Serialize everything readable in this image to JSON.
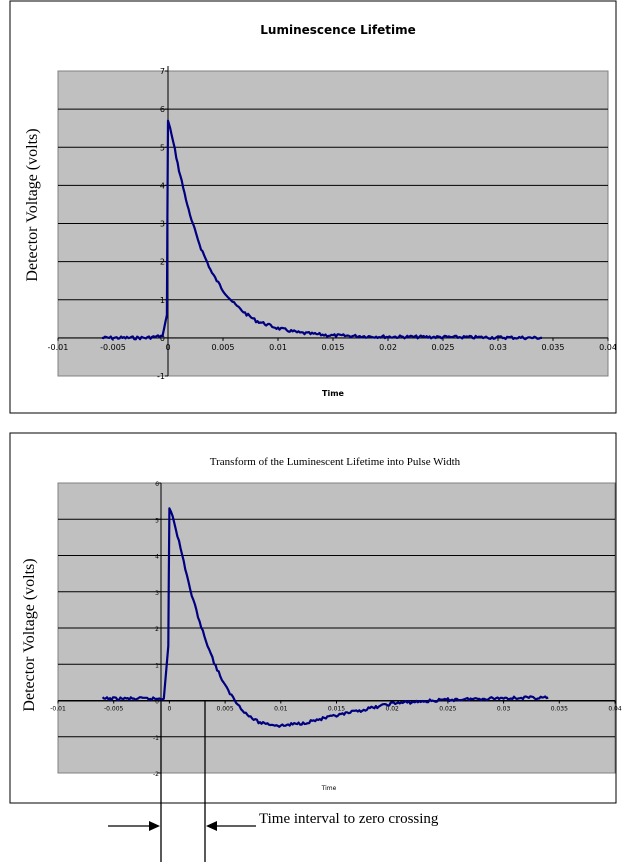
{
  "chart_data": [
    {
      "type": "line",
      "title": "Luminescence Lifetime",
      "xlabel": "Time",
      "ylabel": "Detector Voltage (volts)",
      "xlim": [
        -0.01,
        0.04
      ],
      "ylim": [
        -1,
        7
      ],
      "x_ticks": [
        "-0.01",
        "-0.005",
        "0",
        "0.005",
        "0.01",
        "0.015",
        "0.02",
        "0.025",
        "0.03",
        "0.035",
        "0.04"
      ],
      "y_ticks": [
        "-1",
        "0",
        "1",
        "2",
        "3",
        "4",
        "5",
        "6",
        "7"
      ],
      "grid": true,
      "plot_area_color": "#c0c0c0",
      "series": [
        {
          "color": "#000080",
          "x": [
            -0.006,
            -0.004,
            -0.002,
            -0.0005,
            -0.0001,
            0,
            0.0002,
            0.0005,
            0.001,
            0.0015,
            0.002,
            0.003,
            0.004,
            0.005,
            0.006,
            0.007,
            0.008,
            0.01,
            0.012,
            0.015,
            0.02,
            0.025,
            0.03,
            0.034
          ],
          "y": [
            0,
            0,
            0,
            0.05,
            0.6,
            5.7,
            5.5,
            5.1,
            4.4,
            3.8,
            3.2,
            2.35,
            1.7,
            1.25,
            0.9,
            0.65,
            0.45,
            0.25,
            0.13,
            0.06,
            0.03,
            0.02,
            0.01,
            0
          ]
        }
      ]
    },
    {
      "type": "line",
      "title": "Transform of the Luminescent Lifetime into Pulse Width",
      "xlabel": "Time",
      "ylabel": "Detector Voltage (volts)",
      "xlim": [
        -0.01,
        0.04
      ],
      "ylim": [
        -2,
        6
      ],
      "x_ticks": [
        "-0.01",
        "-0.005",
        "0",
        "0.005",
        "0.01",
        "0.015",
        "0.02",
        "0.025",
        "0.03",
        "0.035",
        "0.04"
      ],
      "y_ticks": [
        "-2",
        "-1",
        "0",
        "1",
        "2",
        "3",
        "4",
        "5",
        "6"
      ],
      "grid": true,
      "plot_area_color": "#c0c0c0",
      "annotation": "Time interval to zero crossing",
      "series": [
        {
          "color": "#000080",
          "x": [
            -0.006,
            -0.004,
            -0.002,
            -0.0005,
            -0.0001,
            0,
            0.0003,
            0.001,
            0.002,
            0.003,
            0.004,
            0.005,
            0.006,
            0.007,
            0.008,
            0.01,
            0.012,
            0.015,
            0.018,
            0.02,
            0.025,
            0.03,
            0.034
          ],
          "y": [
            0.05,
            0.05,
            0.05,
            0.05,
            1.5,
            5.3,
            5.1,
            4.2,
            2.9,
            1.9,
            1.05,
            0.4,
            -0.05,
            -0.4,
            -0.6,
            -0.7,
            -0.62,
            -0.42,
            -0.22,
            -0.08,
            0.02,
            0.07,
            0.08
          ]
        }
      ]
    }
  ]
}
